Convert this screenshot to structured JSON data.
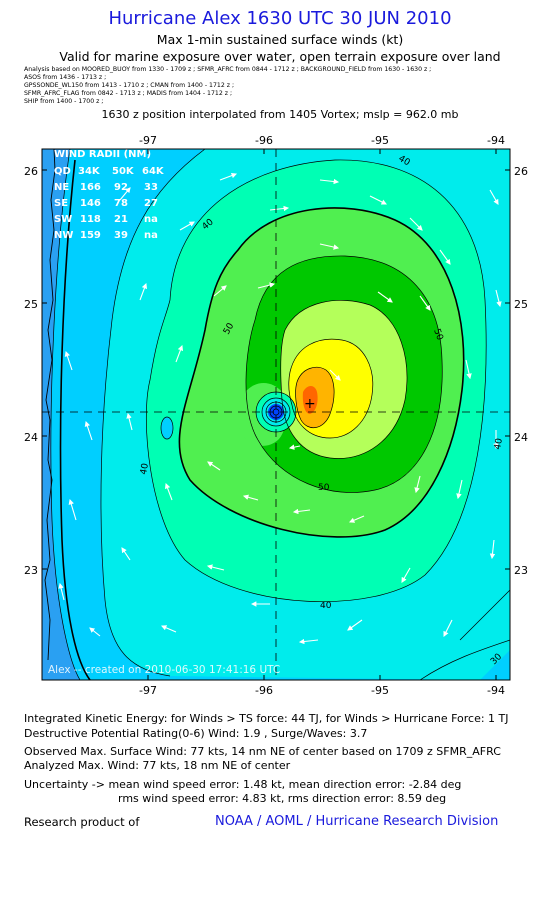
{
  "header": {
    "title": "Hurricane Alex 1630 UTC 30 JUN 2010",
    "subtitle": "Max 1-min sustained surface winds (kt)",
    "valid": "Valid for marine exposure over water, open terrain exposure over land",
    "sources": [
      "Analysis based on  MOORED_BUOY from 1330 - 1709 z ;  SFMR_AFRC from 0844 - 1712 z ;  BACKGROUND_FIELD from 1630 - 1630 z ;",
      "ASOS from 1436 - 1713 z ;",
      "GPSSONDE_WL150 from 1413 - 1710 z ;  CMAN from 1400 - 1712 z ;",
      "SFMR_AFRC_FLAG from 0842 - 1713 z ;  MADIS from 1404 - 1712 z ;",
      "SHIP from 1400 - 1700 z ;"
    ],
    "position_note": "1630 z position interpolated from 1405 Vortex; mslp = 962.0 mb"
  },
  "chart_data": {
    "type": "heatmap",
    "x_axis": {
      "range": [
        -97.8,
        -93.9
      ],
      "ticks": [
        -97,
        -96,
        -95,
        -94
      ],
      "tick_labels": [
        "-97",
        "-96",
        "-95",
        "-94"
      ]
    },
    "y_axis": {
      "range": [
        22.2,
        26.2
      ],
      "ticks": [
        23,
        24,
        25,
        26
      ],
      "tick_labels": [
        "23",
        "24",
        "25",
        "26"
      ]
    },
    "center": {
      "lon": -95.9,
      "lat": 24.15
    },
    "max_wind_location": {
      "lon": -95.6,
      "lat": 24.25
    },
    "contour_levels_kt": [
      30,
      40,
      50,
      60,
      70
    ],
    "contour_labels": [
      "40",
      "40",
      "50",
      "50",
      "40",
      "40",
      "50",
      "40",
      "30"
    ],
    "fill_colors": {
      "lt20": "#2aa0f2",
      "20-30": "#00cfff",
      "30-40": "#00ecec",
      "40-50": "#00ffb4",
      "50-60": "#50ef50",
      "60-70": "#00c800",
      "70-80": "#b4ff5a",
      "80-90": "#ffff00",
      "90-100": "#ffb400",
      "gt100": "#ff6600",
      "eye": "#0044ff"
    },
    "wind_radii_table": {
      "header": [
        "WIND RADII (NM)"
      ],
      "columns": [
        "QD",
        "34K",
        "50K",
        "64K"
      ],
      "rows": [
        [
          "NE",
          "166",
          "92",
          "33"
        ],
        [
          "SE",
          "146",
          "78",
          "27"
        ],
        [
          "SW",
          "118",
          "21",
          "na"
        ],
        [
          "NW",
          "159",
          "39",
          "na"
        ]
      ]
    },
    "grid": "dashed crosshair through center",
    "credit": "Alex -- created on 2010-06-30 17:41:16 UTC"
  },
  "footer": {
    "ike": "Integrated Kinetic Energy:  for Winds > TS force: 44 TJ,  for Winds > Hurricane Force: 1 TJ",
    "dpr": "Destructive Potential Rating(0-6)   Wind: 1.9 , Surge/Waves: 3.7",
    "observed": "Observed Max. Surface Wind: 77 kts, 14 nm NE of center based on 1709 z SFMR_AFRC",
    "analyzed": "Analyzed Max. Wind: 77 kts, 18 nm NE of center",
    "uncertainty1": "Uncertainty -> mean wind speed error: 1.48 kt,   mean direction error:  -2.84 deg",
    "uncertainty2": "rms wind speed error: 4.83 kt,   rms direction error: 8.59 deg",
    "research": "Research product of",
    "org": "NOAA / AOML / Hurricane Research Division"
  }
}
